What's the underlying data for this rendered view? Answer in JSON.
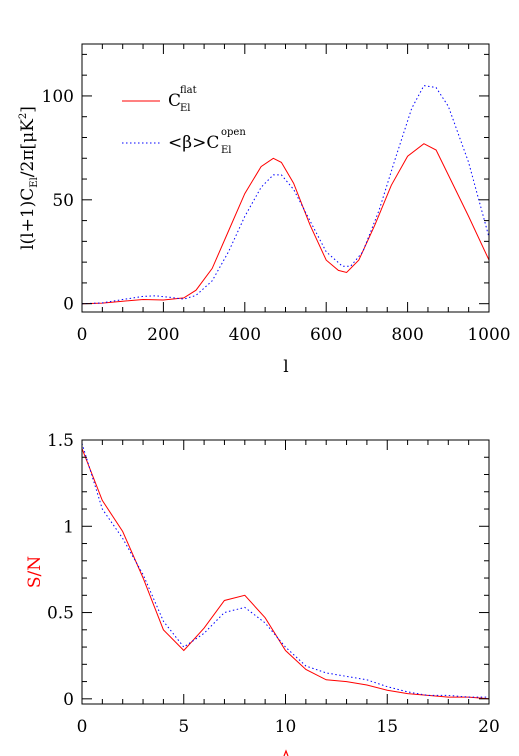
{
  "chart_data": [
    {
      "type": "line",
      "xlabel": "l",
      "ylabel": "l(l+1)C_El/2π[μK²]",
      "xlim": [
        0,
        1000
      ],
      "ylim": [
        -4,
        125
      ],
      "xticks": [
        0,
        200,
        400,
        600,
        800,
        1000
      ],
      "yticks": [
        0,
        50,
        100
      ],
      "xtick_labels": [
        "0",
        "200",
        "400",
        "600",
        "800",
        "1000"
      ],
      "ytick_labels": [
        "0",
        "50",
        "100"
      ],
      "legend_position": "top-left",
      "series": [
        {
          "name": "C_El^flat",
          "legend_main": "C",
          "legend_sub": "El",
          "legend_sup": "flat",
          "color": "#ff0000",
          "style": "solid",
          "x": [
            0,
            50,
            100,
            150,
            200,
            250,
            280,
            320,
            360,
            400,
            440,
            470,
            490,
            520,
            560,
            600,
            630,
            650,
            680,
            720,
            760,
            800,
            840,
            870,
            900,
            950,
            1000
          ],
          "y": [
            0,
            0.3,
            1.2,
            2,
            1.8,
            2.8,
            6.5,
            17,
            35,
            53,
            66,
            70,
            68,
            58,
            38,
            21,
            16,
            15,
            21,
            38,
            57,
            71,
            77,
            74,
            62,
            42,
            21
          ]
        },
        {
          "name": "<β>C_El^open",
          "legend_main": "<β>C",
          "legend_sub": "El",
          "legend_sup": "open",
          "color": "#0000ff",
          "style": "dotted",
          "x": [
            0,
            50,
            100,
            150,
            180,
            220,
            250,
            280,
            320,
            360,
            400,
            440,
            470,
            490,
            520,
            560,
            600,
            640,
            660,
            690,
            730,
            770,
            810,
            840,
            870,
            900,
            950,
            1000
          ],
          "y": [
            0,
            0.4,
            2,
            3.5,
            3.8,
            3,
            2.2,
            4,
            11,
            25,
            42,
            56,
            62,
            62,
            55,
            40,
            25,
            18,
            18,
            25,
            45,
            70,
            94,
            105,
            104,
            95,
            68,
            32
          ]
        }
      ]
    },
    {
      "type": "line",
      "xlabel": "",
      "ylabel": "S/N",
      "xlim": [
        0,
        20
      ],
      "ylim": [
        -0.03,
        1.5
      ],
      "xticks": [
        0,
        5,
        10,
        15,
        20
      ],
      "yticks": [
        0,
        0.5,
        1,
        1.5
      ],
      "xtick_labels": [
        "0",
        "5",
        "10",
        "15",
        "20"
      ],
      "ytick_labels": [
        "0",
        "0.5",
        "1",
        "1.5"
      ],
      "series": [
        {
          "color": "#ff0000",
          "style": "solid",
          "x": [
            0,
            1,
            2,
            3,
            4,
            5,
            6,
            7,
            8,
            9,
            10,
            11,
            12,
            13,
            14,
            15,
            16,
            17,
            18,
            19,
            20
          ],
          "y": [
            1.45,
            1.15,
            0.97,
            0.7,
            0.4,
            0.28,
            0.41,
            0.57,
            0.6,
            0.47,
            0.28,
            0.17,
            0.11,
            0.1,
            0.08,
            0.05,
            0.03,
            0.02,
            0.01,
            0.01,
            0.0
          ]
        },
        {
          "color": "#0000ff",
          "style": "dotted",
          "x": [
            0,
            1,
            2,
            3,
            4,
            5,
            6,
            7,
            8,
            9,
            10,
            11,
            12,
            13,
            14,
            15,
            16,
            17,
            18,
            19,
            20
          ],
          "y": [
            1.48,
            1.1,
            0.93,
            0.72,
            0.45,
            0.3,
            0.38,
            0.5,
            0.53,
            0.44,
            0.3,
            0.19,
            0.15,
            0.13,
            0.11,
            0.07,
            0.04,
            0.02,
            0.02,
            0.01,
            0.01
          ]
        }
      ]
    }
  ]
}
